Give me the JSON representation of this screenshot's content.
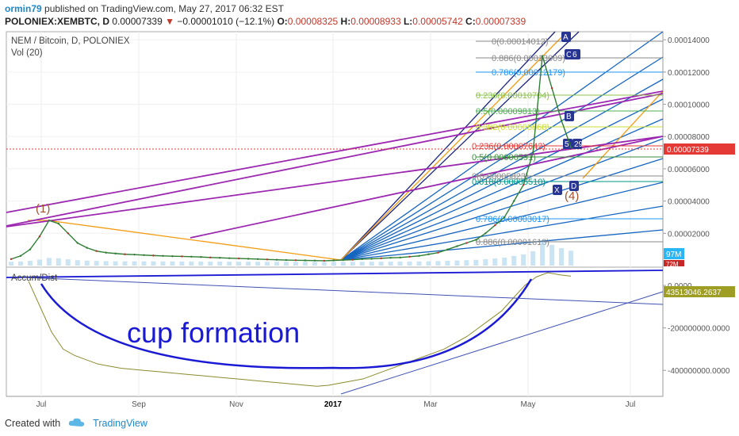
{
  "header": {
    "user": "ormin79",
    "published": "published on TradingView.com, May 27, 2017 06:32 EST",
    "symbol": "POLONIEX:XEMBTC, D",
    "last": "0.00007339",
    "change": "−0.00001010 (−12.1%)",
    "o_label": "O:",
    "o_val": "0.00008325",
    "h_label": "H:",
    "h_val": "0.00008933",
    "l_label": "L:",
    "l_val": "0.00005742",
    "c_label": "C:",
    "c_val": "0.00007339"
  },
  "chart_title": "NEM / Bitcoin, D, POLONIEX",
  "volume_label": "Vol (20)",
  "indicator_label": "Accum/Dist",
  "annotation": "cup formation",
  "footer": {
    "created": "Created with",
    "brand": "TradingView"
  },
  "colors": {
    "price": "#2e7d32",
    "down": "#c62828",
    "fib_blue": "#1565c0",
    "purple": "#9c27b0",
    "orange": "#f39c12",
    "navy": "#1a237e",
    "ad": "#8b8b2e",
    "last_price": "#e53935"
  },
  "chart_data": [
    {
      "type": "line",
      "title": "NEM / Bitcoin, D, POLONIEX",
      "x_ticks": [
        "Jul",
        "Sep",
        "Nov",
        "2017",
        "Mar",
        "May",
        "Jul"
      ],
      "y_ticks": [
        "0.00002000",
        "0.00004000",
        "0.00006000",
        "0.00008000",
        "0.00010000",
        "0.00012000",
        "0.00014000"
      ],
      "ylim": [
        0,
        0.000145
      ],
      "series": [
        {
          "values": [
            4e-06,
            6e-06,
            1e-05,
            1.8e-05,
            2.8e-05,
            2.6e-05,
            2e-05,
            1.4e-05,
            1.1e-05,
            9e-06,
            8e-06,
            7.5e-06,
            7e-06,
            6.8e-06,
            6.5e-06,
            6.2e-06,
            6e-06,
            5.8e-06,
            5.7e-06,
            5.5e-06,
            5.3e-06,
            5e-06,
            4.8e-06,
            4.6e-06,
            4.4e-06,
            4.2e-06,
            4e-06,
            3.8e-06,
            3.6e-06,
            3.4e-06,
            3.3e-06,
            3.2e-06,
            3.1e-06,
            3e-06,
            3.2e-06,
            3.4e-06,
            3.6e-06,
            4e-06,
            4.2e-06,
            4.5e-06,
            4.8e-06,
            5e-06,
            5.5e-06,
            6e-06,
            7e-06,
            8e-06,
            1e-05,
            1.2e-05,
            1.4e-05,
            1.6e-05,
            2e-05,
            2.5e-05,
            3e-05,
            4e-05,
            5e-05,
            7e-05,
            0.00013,
            0.00011,
            9e-05,
            7.34e-05
          ]
        }
      ],
      "last_price_label": "0.00007339",
      "volume_label": "97M",
      "volume_label_2": "72M"
    },
    {
      "type": "line",
      "title": "Accum/Dist",
      "y_ticks": [
        "0.0000",
        "-200000000.0000",
        "-400000000.0000"
      ],
      "ylim": [
        -500000000,
        60000000
      ],
      "last_label": "43513046.2637",
      "series": [
        {
          "values": [
            20000000,
            -100000000,
            -220000000,
            -300000000,
            -330000000,
            -350000000,
            -370000000,
            -380000000,
            -390000000,
            -395000000,
            -400000000,
            -405000000,
            -410000000,
            -415000000,
            -420000000,
            -425000000,
            -430000000,
            -435000000,
            -440000000,
            -445000000,
            -450000000,
            -455000000,
            -460000000,
            -465000000,
            -470000000,
            -475000000,
            -470000000,
            -460000000,
            -450000000,
            -440000000,
            -420000000,
            -400000000,
            -380000000,
            -360000000,
            -340000000,
            -320000000,
            -300000000,
            -270000000,
            -240000000,
            -200000000,
            -160000000,
            -120000000,
            -60000000,
            0,
            40000000,
            60000000,
            50000000,
            43513046
          ]
        }
      ]
    }
  ],
  "fib_labels": [
    "0(0.00014012)",
    "0.886(0.00013009)",
    "0.786(0.00012179)",
    "0.236(0.00010704)",
    "0.5(0.00009813)",
    "0.382(0.00008868)",
    "0.236(0.00007642)",
    "0.5(0.00006591)",
    "0(0.00005823)",
    "0.618(0.00005510)",
    "0.786(0.00003017)",
    "0.886(0.00001618)"
  ],
  "wave_labels": [
    "(1)",
    "(4)",
    "A",
    "B",
    "C",
    "D",
    "X",
    "5",
    "6",
    "29"
  ]
}
